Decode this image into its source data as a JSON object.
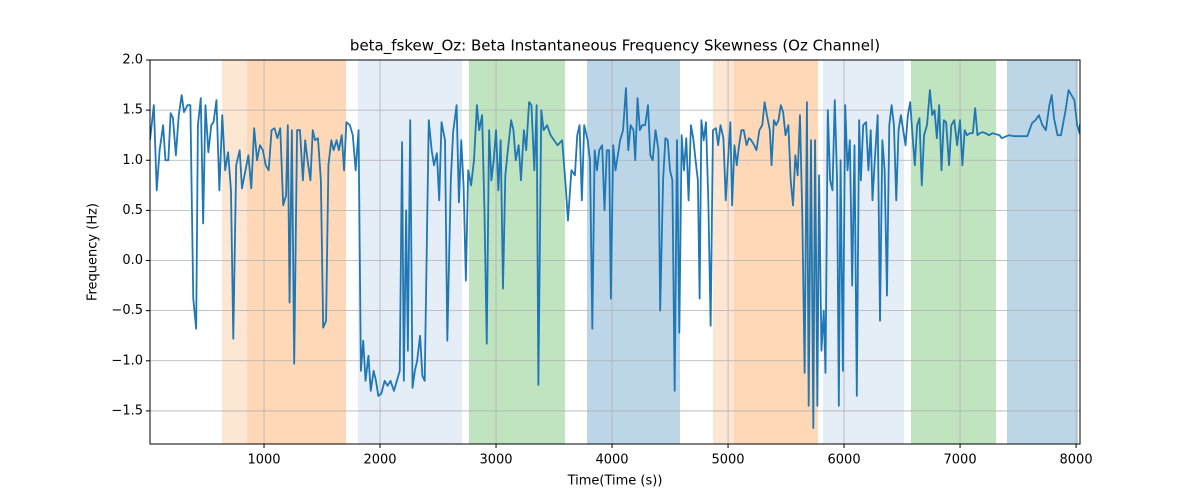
{
  "chart_data": {
    "type": "line",
    "title": "beta_fskew_Oz: Beta Instantaneous Frequency Skewness (Oz Channel)",
    "x_label": "Time(Time (s))",
    "y_label": "Frequency (Hz)",
    "xlim": [
      17,
      8034
    ],
    "ylim": [
      -1.83,
      2.0
    ],
    "xticks": [
      1000,
      2000,
      3000,
      4000,
      5000,
      6000,
      7000,
      8000
    ],
    "yticks": [
      {
        "value": -1.5,
        "label": "−1.5"
      },
      {
        "value": -1.0,
        "label": "−1.0"
      },
      {
        "value": -0.5,
        "label": "−0.5"
      },
      {
        "value": 0,
        "label": "0.0"
      },
      {
        "value": 0.5,
        "label": "0.5"
      },
      {
        "value": 1.0,
        "label": "1.0"
      },
      {
        "value": 1.5,
        "label": "1.5"
      },
      {
        "value": 2.0,
        "label": "2.0"
      }
    ],
    "grid": true,
    "color": "#1f77b4",
    "spans": [
      {
        "start": 638,
        "end": 853,
        "color": "#fde7d2"
      },
      {
        "start": 853,
        "end": 1707,
        "color": "#ffd9b7"
      },
      {
        "start": 1810,
        "end": 2707,
        "color": "#e5edf7"
      },
      {
        "start": 2767,
        "end": 3595,
        "color": "#c0e3c0"
      },
      {
        "start": 3784,
        "end": 4586,
        "color": "#bcd6e8"
      },
      {
        "start": 4870,
        "end": 5051,
        "color": "#fde7d2"
      },
      {
        "start": 5051,
        "end": 5776,
        "color": "#ffd9b7"
      },
      {
        "start": 5819,
        "end": 6517,
        "color": "#e5edf7"
      },
      {
        "start": 6577,
        "end": 7310,
        "color": "#c0e3c0"
      },
      {
        "start": 7405,
        "end": 8017,
        "color": "#bcd6e8"
      }
    ],
    "x": [
      17,
      50,
      75,
      100,
      130,
      150,
      175,
      195,
      215,
      240,
      265,
      290,
      310,
      340,
      365,
      390,
      415,
      430,
      455,
      475,
      495,
      520,
      545,
      565,
      590,
      615,
      640,
      665,
      690,
      715,
      735,
      760,
      790,
      810,
      840,
      865,
      890,
      915,
      940,
      965,
      990,
      1015,
      1040,
      1065,
      1090,
      1115,
      1140,
      1165,
      1190,
      1205,
      1220,
      1240,
      1260,
      1285,
      1310,
      1335,
      1355,
      1375,
      1400,
      1420,
      1440,
      1465,
      1490,
      1510,
      1535,
      1555,
      1580,
      1600,
      1625,
      1645,
      1670,
      1690,
      1710,
      1740,
      1765,
      1790,
      1815,
      1835,
      1855,
      1875,
      1900,
      1920,
      1945,
      1965,
      1985,
      2010,
      2040,
      2065,
      2090,
      2120,
      2145,
      2170,
      2190,
      2205,
      2225,
      2240,
      2260,
      2280,
      2300,
      2320,
      2345,
      2365,
      2385,
      2420,
      2445,
      2465,
      2490,
      2510,
      2530,
      2560,
      2580,
      2610,
      2630,
      2660,
      2680,
      2700,
      2720,
      2740,
      2760,
      2785,
      2810,
      2835,
      2855,
      2880,
      2900,
      2920,
      2940,
      2960,
      2980,
      3000,
      3020,
      3040,
      3060,
      3080,
      3100,
      3130,
      3150,
      3170,
      3195,
      3215,
      3240,
      3260,
      3285,
      3305,
      3330,
      3350,
      3365,
      3390,
      3410,
      3440,
      3470,
      3500,
      3530,
      3570,
      3600,
      3620,
      3650,
      3680,
      3700,
      3720,
      3740,
      3760,
      3790,
      3810,
      3830,
      3850,
      3870,
      3890,
      3915,
      3935,
      3955,
      3975,
      3990,
      4010,
      4030,
      4050,
      4070,
      4095,
      4120,
      4140,
      4160,
      4185,
      4200,
      4220,
      4240,
      4260,
      4285,
      4310,
      4330,
      4350,
      4375,
      4400,
      4415,
      4440,
      4460,
      4480,
      4500,
      4520,
      4540,
      4560,
      4580,
      4600,
      4620,
      4640,
      4660,
      4680,
      4700,
      4720,
      4740,
      4755,
      4770,
      4790,
      4810,
      4830,
      4850,
      4870,
      4895,
      4915,
      4935,
      4960,
      4980,
      5000,
      5020,
      5035,
      5055,
      5075,
      5095,
      5115,
      5135,
      5160,
      5180,
      5200,
      5225,
      5245,
      5270,
      5295,
      5315,
      5335,
      5360,
      5375,
      5395,
      5415,
      5435,
      5455,
      5475,
      5495,
      5520,
      5540,
      5560,
      5580,
      5600,
      5620,
      5640,
      5660,
      5680,
      5695,
      5715,
      5735,
      5750,
      5770,
      5785,
      5805,
      5825,
      5840,
      5860,
      5880,
      5900,
      5920,
      5940,
      5955,
      5970,
      5990,
      6010,
      6030,
      6050,
      6070,
      6090,
      6110,
      6130,
      6145,
      6165,
      6190,
      6210,
      6230,
      6245,
      6265,
      6290,
      6310,
      6330,
      6350,
      6370,
      6390,
      6410,
      6430,
      6450,
      6470,
      6490,
      6510,
      6530,
      6550,
      6570,
      6590,
      6610,
      6630,
      6650,
      6670,
      6690,
      6715,
      6740,
      6760,
      6780,
      6800,
      6820,
      6840,
      6860,
      6880,
      6905,
      6925,
      6950,
      6975,
      7000,
      7020,
      7040,
      7060,
      7085,
      7110,
      7130,
      7150,
      7170,
      7195,
      7220,
      7250,
      7280,
      7310,
      7340,
      7360,
      7380,
      7420,
      7470,
      7530,
      7580,
      7620,
      7650,
      7680,
      7710,
      7740,
      7770,
      7790,
      7810,
      7840,
      7870,
      7910,
      7935,
      7960,
      7985,
      8010,
      8030,
      8034
    ],
    "values": [
      1.2,
      1.55,
      0.7,
      1.1,
      1.35,
      1.0,
      1.0,
      1.47,
      1.42,
      1.05,
      1.45,
      1.65,
      1.48,
      1.55,
      1.55,
      -0.38,
      -0.68,
      1.35,
      1.62,
      0.37,
      1.55,
      1.08,
      1.35,
      1.38,
      1.6,
      0.7,
      1.45,
      0.9,
      1.08,
      0.7,
      -0.78,
      0.95,
      1.1,
      0.72,
      0.9,
      1.05,
      0.72,
      1.32,
      1.0,
      1.15,
      1.1,
      0.95,
      0.9,
      1.3,
      1.32,
      1.22,
      1.32,
      0.55,
      0.65,
      1.35,
      -0.42,
      1.3,
      -1.03,
      1.3,
      1.3,
      0.8,
      1.2,
      1.0,
      0.8,
      1.3,
      1.2,
      1.22,
      0.8,
      -0.67,
      -0.6,
      0.95,
      1.2,
      1.1,
      1.2,
      1.1,
      1.25,
      0.9,
      1.38,
      1.35,
      1.25,
      0.9,
      1.3,
      -1.1,
      -0.8,
      -1.2,
      -0.95,
      -1.3,
      -1.1,
      -1.2,
      -1.35,
      -1.33,
      -1.2,
      -1.25,
      -1.2,
      -1.3,
      -1.2,
      -1.1,
      1.18,
      -1.2,
      0.5,
      -0.9,
      1.4,
      -1.27,
      -1.1,
      -1.0,
      -0.75,
      -1.15,
      -1.2,
      1.4,
      1.1,
      0.95,
      1.07,
      0.6,
      1.38,
      1.2,
      -0.8,
      0.8,
      1.28,
      1.55,
      0.58,
      1.2,
      0.75,
      -0.2,
      0.9,
      0.75,
      1.0,
      1.55,
      1.3,
      1.45,
      0.5,
      -0.83,
      1.3,
      0.8,
      1.0,
      1.3,
      0.7,
      1.2,
      -0.28,
      0.85,
      1.08,
      1.4,
      1.3,
      1.0,
      1.15,
      0.8,
      1.3,
      1.1,
      1.58,
      1.55,
      0.9,
      1.55,
      -1.24,
      1.5,
      1.3,
      1.35,
      1.25,
      1.2,
      1.15,
      1.2,
      0.75,
      0.4,
      0.9,
      0.85,
      1.25,
      1.35,
      0.6,
      1.35,
      1.2,
      1.0,
      -0.68,
      1.1,
      0.9,
      1.1,
      1.15,
      0.5,
      1.1,
      1.1,
      -0.38,
      1.15,
      0.9,
      1.05,
      1.2,
      1.3,
      1.72,
      1.1,
      1.35,
      1.3,
      1.0,
      1.62,
      1.3,
      1.35,
      1.35,
      1.55,
      1.05,
      1.0,
      1.3,
      1.1,
      -0.5,
      0.8,
      1.22,
      1.2,
      0.9,
      0.8,
      -1.3,
      1.2,
      -0.72,
      1.25,
      0.9,
      1.22,
      0.6,
      1.35,
      1.22,
      1.0,
      0.8,
      -0.38,
      1.4,
      1.2,
      1.38,
      0.6,
      -0.65,
      1.3,
      1.32,
      1.15,
      1.35,
      1.22,
      0.6,
      1.0,
      1.38,
      0.55,
      1.15,
      0.95,
      1.15,
      1.3,
      1.3,
      1.15,
      1.22,
      1.2,
      1.15,
      1.1,
      1.3,
      1.35,
      1.58,
      1.45,
      1.3,
      0.95,
      1.4,
      1.35,
      1.4,
      1.55,
      1.48,
      1.25,
      1.35,
      0.8,
      0.55,
      1.05,
      0.85,
      1.45,
      0.45,
      -1.12,
      1.58,
      -1.45,
      1.2,
      -1.67,
      1.2,
      -1.45,
      0.85,
      -0.9,
      -0.5,
      -1.12,
      1.5,
      0.8,
      0.7,
      1.6,
      0.8,
      -1.45,
      1.0,
      -1.1,
      1.55,
      0.9,
      1.2,
      -0.25,
      1.15,
      -1.35,
      1.4,
      0.8,
      1.35,
      1.38,
      0.9,
      1.3,
      0.6,
      1.0,
      1.45,
      -0.6,
      1.2,
      0.9,
      -0.35,
      1.35,
      1.55,
      1.35,
      0.6,
      1.3,
      1.45,
      1.3,
      1.15,
      1.45,
      1.58,
      1.25,
      0.95,
      1.35,
      1.42,
      0.75,
      1.25,
      1.35,
      1.7,
      1.45,
      1.5,
      1.22,
      1.55,
      0.9,
      1.4,
      1.38,
      0.95,
      1.35,
      1.4,
      1.15,
      1.4,
      0.95,
      1.3,
      1.25,
      1.27,
      1.27,
      1.52,
      1.25,
      1.27,
      1.28,
      1.27,
      1.25,
      1.27,
      1.26,
      1.25,
      1.22,
      1.23,
      1.25,
      1.24,
      1.24,
      1.24,
      1.37,
      1.4,
      1.45,
      1.35,
      1.3,
      1.55,
      1.65,
      1.42,
      1.25,
      1.25,
      1.5,
      1.7,
      1.65,
      1.6,
      1.35,
      1.27,
      1.36
    ]
  }
}
